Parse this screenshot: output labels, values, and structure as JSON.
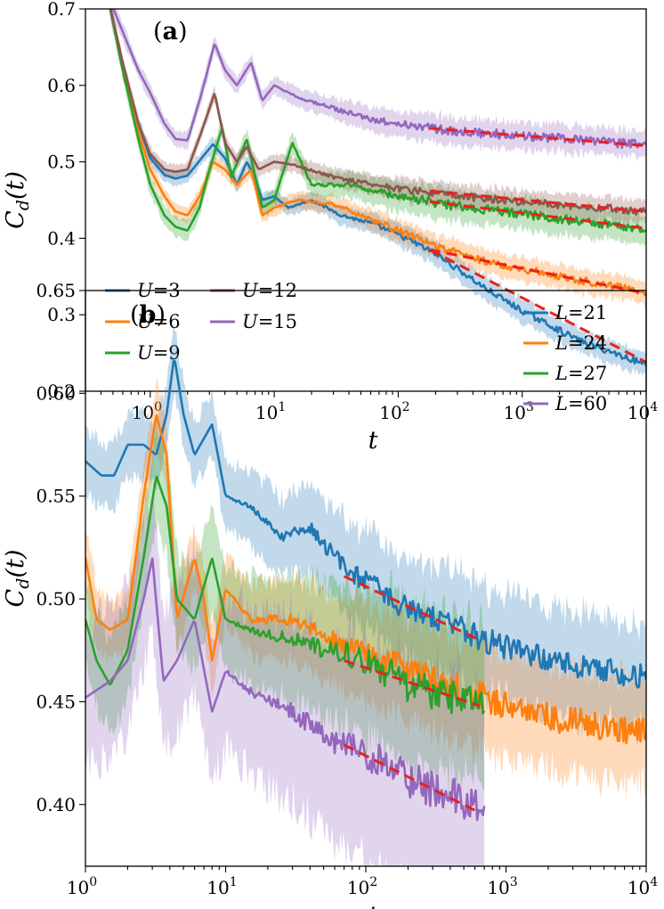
{
  "chart_data": [
    {
      "type": "line",
      "panel_label": "(a)",
      "xlabel": "t",
      "ylabel": "C_d(t)",
      "x_scale": "log",
      "xlim": [
        0.3,
        10000
      ],
      "ylim": [
        0.2,
        0.7
      ],
      "x_ticks": [
        1,
        10,
        100,
        1000,
        10000
      ],
      "x_tick_labels": [
        {
          "b": "10",
          "e": "0"
        },
        {
          "b": "10",
          "e": "1"
        },
        {
          "b": "10",
          "e": "2"
        },
        {
          "b": "10",
          "e": "3"
        },
        {
          "b": "10",
          "e": "4"
        }
      ],
      "y_ticks": [
        0.2,
        0.3,
        0.4,
        0.5,
        0.6,
        0.7
      ],
      "y_tick_labels": [
        "0.2",
        "0.3",
        "0.4",
        "0.5",
        "0.6",
        "0.7"
      ],
      "legend_position": "lower-left",
      "legend_columns": 2,
      "shaded_band": "fluctuation range around each series",
      "series": [
        {
          "name": "U=3",
          "legend": {
            "var": "U",
            "eq": "=3"
          },
          "color": "#1f77b4",
          "band": 0.012,
          "noise_late": 0.004,
          "points": [
            [
              0.45,
              0.72
            ],
            [
              0.6,
              0.62
            ],
            [
              0.8,
              0.55
            ],
            [
              1.0,
              0.505
            ],
            [
              1.3,
              0.483
            ],
            [
              1.6,
              0.478
            ],
            [
              2.0,
              0.482
            ],
            [
              2.6,
              0.505
            ],
            [
              3.2,
              0.523
            ],
            [
              4.0,
              0.505
            ],
            [
              5.0,
              0.47
            ],
            [
              6.0,
              0.5
            ],
            [
              7.0,
              0.48
            ],
            [
              8.0,
              0.45
            ],
            [
              10,
              0.455
            ],
            [
              13,
              0.44
            ],
            [
              20,
              0.45
            ],
            [
              35,
              0.43
            ],
            [
              60,
              0.42
            ],
            [
              100,
              0.405
            ],
            [
              200,
              0.38
            ],
            [
              500,
              0.335
            ],
            [
              1000,
              0.305
            ],
            [
              3000,
              0.265
            ],
            [
              10000,
              0.235
            ]
          ]
        },
        {
          "name": "U=6",
          "legend": {
            "var": "U",
            "eq": "=6"
          },
          "color": "#ff7f0e",
          "band": 0.012,
          "noise_late": 0.005,
          "points": [
            [
              0.45,
              0.72
            ],
            [
              0.6,
              0.62
            ],
            [
              0.8,
              0.54
            ],
            [
              1.0,
              0.49
            ],
            [
              1.3,
              0.455
            ],
            [
              1.6,
              0.435
            ],
            [
              2.0,
              0.43
            ],
            [
              2.5,
              0.455
            ],
            [
              3.2,
              0.5
            ],
            [
              4.0,
              0.49
            ],
            [
              5.0,
              0.47
            ],
            [
              6.5,
              0.49
            ],
            [
              8.0,
              0.43
            ],
            [
              10,
              0.44
            ],
            [
              15,
              0.45
            ],
            [
              30,
              0.445
            ],
            [
              60,
              0.425
            ],
            [
              100,
              0.41
            ],
            [
              200,
              0.39
            ],
            [
              500,
              0.37
            ],
            [
              1000,
              0.36
            ],
            [
              3000,
              0.345
            ],
            [
              10000,
              0.33
            ]
          ]
        },
        {
          "name": "U=9",
          "legend": {
            "var": "U",
            "eq": "=9"
          },
          "color": "#2ca02c",
          "band": 0.016,
          "noise_late": 0.006,
          "points": [
            [
              0.45,
              0.72
            ],
            [
              0.6,
              0.62
            ],
            [
              0.8,
              0.53
            ],
            [
              1.0,
              0.47
            ],
            [
              1.3,
              0.43
            ],
            [
              1.6,
              0.415
            ],
            [
              2.0,
              0.41
            ],
            [
              2.5,
              0.44
            ],
            [
              3.0,
              0.49
            ],
            [
              3.8,
              0.545
            ],
            [
              4.5,
              0.48
            ],
            [
              6.0,
              0.53
            ],
            [
              8.0,
              0.44
            ],
            [
              10,
              0.45
            ],
            [
              14,
              0.525
            ],
            [
              20,
              0.47
            ],
            [
              40,
              0.47
            ],
            [
              100,
              0.455
            ],
            [
              300,
              0.442
            ],
            [
              1000,
              0.432
            ],
            [
              3000,
              0.422
            ],
            [
              10000,
              0.412
            ]
          ]
        },
        {
          "name": "U=12",
          "legend": {
            "var": "U",
            "eq": "=12"
          },
          "color": "#8c564b",
          "band": 0.012,
          "noise_late": 0.005,
          "points": [
            [
              0.45,
              0.72
            ],
            [
              0.6,
              0.63
            ],
            [
              0.8,
              0.55
            ],
            [
              1.0,
              0.51
            ],
            [
              1.3,
              0.49
            ],
            [
              1.6,
              0.487
            ],
            [
              2.0,
              0.49
            ],
            [
              2.6,
              0.54
            ],
            [
              3.3,
              0.59
            ],
            [
              4.0,
              0.525
            ],
            [
              5.0,
              0.5
            ],
            [
              6.0,
              0.52
            ],
            [
              7.5,
              0.49
            ],
            [
              10,
              0.5
            ],
            [
              15,
              0.495
            ],
            [
              30,
              0.48
            ],
            [
              100,
              0.465
            ],
            [
              300,
              0.455
            ],
            [
              1000,
              0.448
            ],
            [
              3000,
              0.442
            ],
            [
              10000,
              0.435
            ]
          ]
        },
        {
          "name": "U=15",
          "legend": {
            "var": "U",
            "eq": "=15"
          },
          "color": "#9467bd",
          "band": 0.014,
          "noise_late": 0.006,
          "points": [
            [
              0.45,
              0.72
            ],
            [
              0.6,
              0.67
            ],
            [
              0.8,
              0.62
            ],
            [
              1.0,
              0.59
            ],
            [
              1.3,
              0.55
            ],
            [
              1.6,
              0.53
            ],
            [
              2.0,
              0.528
            ],
            [
              2.6,
              0.59
            ],
            [
              3.3,
              0.655
            ],
            [
              4.0,
              0.62
            ],
            [
              5.0,
              0.6
            ],
            [
              6.5,
              0.63
            ],
            [
              8.0,
              0.58
            ],
            [
              10,
              0.6
            ],
            [
              15,
              0.585
            ],
            [
              30,
              0.57
            ],
            [
              60,
              0.555
            ],
            [
              100,
              0.55
            ],
            [
              300,
              0.54
            ],
            [
              1000,
              0.534
            ],
            [
              3000,
              0.528
            ],
            [
              10000,
              0.522
            ]
          ]
        }
      ],
      "fits": [
        {
          "from": 180,
          "to": 10000,
          "y_from": 0.544,
          "y_to": 0.521
        },
        {
          "from": 180,
          "to": 10000,
          "y_from": 0.462,
          "y_to": 0.435
        },
        {
          "from": 180,
          "to": 10000,
          "y_from": 0.448,
          "y_to": 0.413
        },
        {
          "from": 180,
          "to": 10000,
          "y_from": 0.385,
          "y_to": 0.328
        },
        {
          "from": 180,
          "to": 10000,
          "y_from": 0.385,
          "y_to": 0.238
        }
      ]
    },
    {
      "type": "line",
      "panel_label": "(b)",
      "xlabel": "t",
      "ylabel": "C_d(t)",
      "x_scale": "log",
      "xlim": [
        1,
        10000
      ],
      "ylim": [
        0.37,
        0.65
      ],
      "x_ticks": [
        1,
        10,
        100,
        1000,
        10000
      ],
      "x_tick_labels": [
        {
          "b": "10",
          "e": "0"
        },
        {
          "b": "10",
          "e": "1"
        },
        {
          "b": "10",
          "e": "2"
        },
        {
          "b": "10",
          "e": "3"
        },
        {
          "b": "10",
          "e": "4"
        }
      ],
      "y_ticks": [
        0.4,
        0.45,
        0.5,
        0.55,
        0.6,
        0.65
      ],
      "y_tick_labels": [
        "0.40",
        "0.45",
        "0.50",
        "0.55",
        "0.60",
        "0.65"
      ],
      "legend_position": "top-right",
      "legend_columns": 1,
      "shaded_band": "fluctuation range around each series",
      "series": [
        {
          "name": "L=21",
          "legend": {
            "var": "L",
            "eq": "=21"
          },
          "color": "#1f77b4",
          "band": 0.02,
          "noise_late": 0.006,
          "points": [
            [
              1.0,
              0.567
            ],
            [
              1.3,
              0.56
            ],
            [
              1.6,
              0.56
            ],
            [
              2.0,
              0.575
            ],
            [
              2.6,
              0.575
            ],
            [
              3.2,
              0.57
            ],
            [
              3.8,
              0.59
            ],
            [
              4.3,
              0.618
            ],
            [
              5.0,
              0.59
            ],
            [
              6.0,
              0.57
            ],
            [
              8.0,
              0.585
            ],
            [
              10,
              0.55
            ],
            [
              15,
              0.545
            ],
            [
              25,
              0.53
            ],
            [
              40,
              0.535
            ],
            [
              70,
              0.515
            ],
            [
              120,
              0.505
            ],
            [
              200,
              0.495
            ],
            [
              400,
              0.488
            ],
            [
              700,
              0.48
            ],
            [
              1500,
              0.473
            ],
            [
              3000,
              0.468
            ],
            [
              10000,
              0.462
            ]
          ]
        },
        {
          "name": "L=24",
          "legend": {
            "var": "L",
            "eq": "=24"
          },
          "color": "#ff7f0e",
          "band": 0.02,
          "noise_late": 0.007,
          "points": [
            [
              1.0,
              0.52
            ],
            [
              1.2,
              0.49
            ],
            [
              1.5,
              0.485
            ],
            [
              2.0,
              0.49
            ],
            [
              2.6,
              0.55
            ],
            [
              3.2,
              0.59
            ],
            [
              3.8,
              0.57
            ],
            [
              4.5,
              0.49
            ],
            [
              6.0,
              0.52
            ],
            [
              7.0,
              0.5
            ],
            [
              8.0,
              0.47
            ],
            [
              10,
              0.505
            ],
            [
              15,
              0.49
            ],
            [
              30,
              0.49
            ],
            [
              60,
              0.48
            ],
            [
              100,
              0.475
            ],
            [
              200,
              0.465
            ],
            [
              400,
              0.458
            ],
            [
              700,
              0.452
            ],
            [
              1500,
              0.445
            ],
            [
              3000,
              0.44
            ],
            [
              10000,
              0.435
            ]
          ]
        },
        {
          "name": "L=27",
          "legend": {
            "var": "L",
            "eq": "=27"
          },
          "color": "#2ca02c",
          "band": 0.03,
          "noise_late": 0.008,
          "points": [
            [
              1.0,
              0.49
            ],
            [
              1.2,
              0.47
            ],
            [
              1.5,
              0.458
            ],
            [
              2.0,
              0.475
            ],
            [
              2.6,
              0.52
            ],
            [
              3.2,
              0.56
            ],
            [
              3.8,
              0.545
            ],
            [
              4.5,
              0.5
            ],
            [
              6.0,
              0.49
            ],
            [
              8.0,
              0.52
            ],
            [
              10,
              0.49
            ],
            [
              15,
              0.485
            ],
            [
              30,
              0.48
            ],
            [
              60,
              0.475
            ],
            [
              100,
              0.47
            ],
            [
              200,
              0.458
            ],
            [
              400,
              0.452
            ],
            [
              700,
              0.45
            ]
          ]
        },
        {
          "name": "L=60",
          "legend": {
            "var": "L",
            "eq": "=60"
          },
          "color": "#9467bd",
          "band": 0.045,
          "noise_late": 0.009,
          "points": [
            [
              1.0,
              0.452
            ],
            [
              1.5,
              0.46
            ],
            [
              2.0,
              0.47
            ],
            [
              2.6,
              0.5
            ],
            [
              3.0,
              0.52
            ],
            [
              3.6,
              0.46
            ],
            [
              4.5,
              0.47
            ],
            [
              6.0,
              0.49
            ],
            [
              8.0,
              0.445
            ],
            [
              10,
              0.465
            ],
            [
              15,
              0.455
            ],
            [
              30,
              0.445
            ],
            [
              60,
              0.43
            ],
            [
              100,
              0.425
            ],
            [
              200,
              0.412
            ],
            [
              400,
              0.405
            ],
            [
              700,
              0.398
            ]
          ]
        }
      ],
      "fits": [
        {
          "from": 70,
          "to": 650,
          "y_from": 0.511,
          "y_to": 0.48
        },
        {
          "from": 70,
          "to": 650,
          "y_from": 0.47,
          "y_to": 0.448
        },
        {
          "from": 70,
          "to": 650,
          "y_from": 0.429,
          "y_to": 0.396
        }
      ]
    }
  ],
  "colors": {
    "fit_line": "#e8211d",
    "axes": "#000000",
    "legend_border": "#cccccc"
  }
}
